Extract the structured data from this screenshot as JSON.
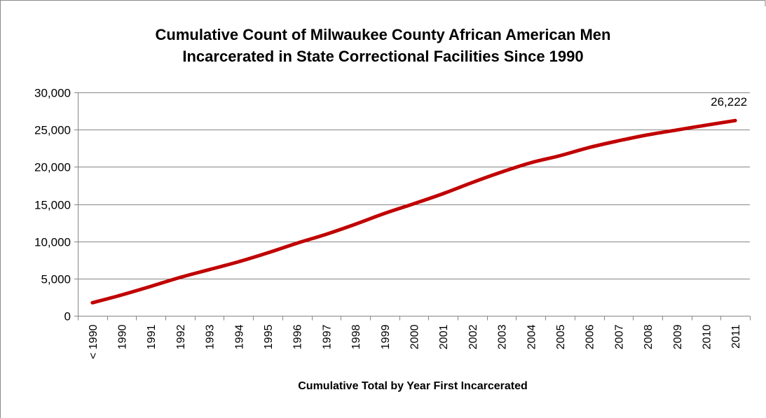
{
  "chart_data": {
    "type": "line",
    "title_lines": [
      "Cumulative Count of Milwaukee County African American Men",
      "Incarcerated in State Correctional Facilities Since 1990"
    ],
    "xlabel": "Cumulative Total by Year First Incarcerated",
    "ylabel": "",
    "categories": [
      "< 1990",
      "1990",
      "1991",
      "1992",
      "1993",
      "1994",
      "1995",
      "1996",
      "1997",
      "1998",
      "1999",
      "2000",
      "2001",
      "2002",
      "2003",
      "2004",
      "2005",
      "2006",
      "2007",
      "2008",
      "2009",
      "2010",
      "2011"
    ],
    "series": [
      {
        "values": [
          1750,
          2800,
          3950,
          5150,
          6200,
          7250,
          8450,
          9750,
          10950,
          12300,
          13750,
          15050,
          16400,
          17900,
          19300,
          20550,
          21500,
          22600,
          23500,
          24300,
          24950,
          25600,
          26222
        ],
        "color": "#c00000"
      }
    ],
    "ylim": [
      0,
      30000
    ],
    "y_ticks": [
      {
        "value": 0,
        "label": "0"
      },
      {
        "value": 5000,
        "label": "5,000"
      },
      {
        "value": 10000,
        "label": "10,000"
      },
      {
        "value": 15000,
        "label": "15,000"
      },
      {
        "value": 20000,
        "label": "20,000"
      },
      {
        "value": 25000,
        "label": "25,000"
      },
      {
        "value": 30000,
        "label": "30,000"
      }
    ],
    "data_labels": [
      {
        "index": 22,
        "label": "26,222"
      }
    ],
    "grid": true,
    "legend": "none"
  }
}
